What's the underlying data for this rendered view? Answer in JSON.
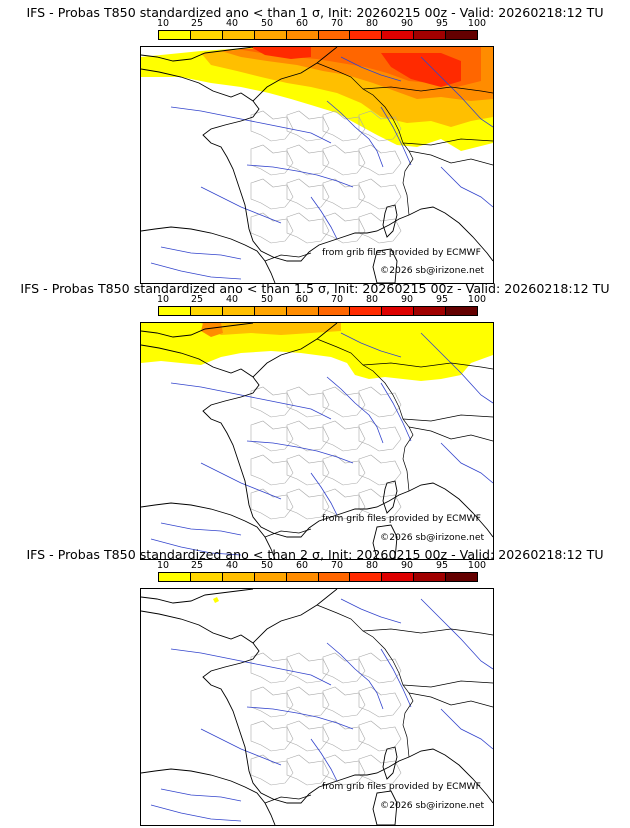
{
  "panels": [
    {
      "title": "IFS - Probas T850  standardized ano < than 1 σ, Init: 20260215 00z - Valid: 20260218:12 TU",
      "source_note": "from grib files provided by ECMWF",
      "copyright": "©2026 sb@irizone.net",
      "probability_field": "sigma-1"
    },
    {
      "title": "IFS - Probas T850  standardized ano < than 1.5 σ, Init: 20260215 00z - Valid: 20260218:12 TU",
      "source_note": "from grib files provided by ECMWF",
      "copyright": "©2026 sb@irizone.net",
      "probability_field": "sigma-1.5"
    },
    {
      "title": "IFS - Probas T850  standardized ano < than 2 σ, Init: 20260215 00z - Valid: 20260218:12 TU",
      "source_note": "from grib files provided by ECMWF",
      "copyright": "©2026 sb@irizone.net",
      "probability_field": "sigma-2"
    }
  ],
  "legend": {
    "labels": [
      "10",
      "25",
      "40",
      "50",
      "60",
      "70",
      "80",
      "90",
      "95",
      "100"
    ],
    "colors": [
      "#ffff00",
      "#ffd700",
      "#ffbf00",
      "#ffa500",
      "#ff8c00",
      "#ff6600",
      "#ff2a00",
      "#dd0000",
      "#a00000",
      "#640000"
    ]
  },
  "map_colors": {
    "coast": "#000000",
    "borders": "#000000",
    "regions": "#aaaaaa",
    "rivers": "#3344cc"
  }
}
